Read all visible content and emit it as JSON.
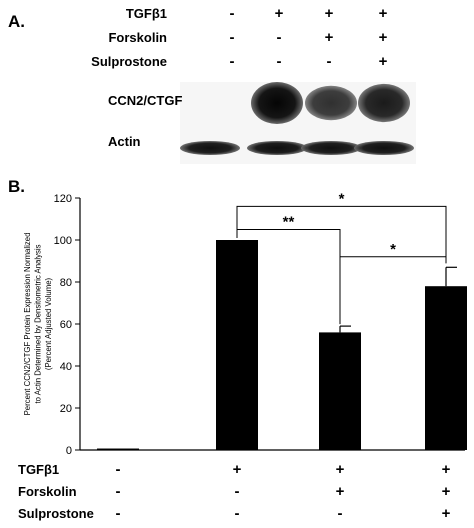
{
  "panel_a": {
    "label": "A.",
    "conditions": [
      {
        "name": "TGFβ1",
        "signs": [
          "-",
          "+",
          "+",
          "+"
        ]
      },
      {
        "name": "Forskolin",
        "signs": [
          "-",
          "-",
          "+",
          "+"
        ]
      },
      {
        "name": "Sulprostone",
        "signs": [
          "-",
          "-",
          "-",
          "+"
        ]
      }
    ],
    "blots": [
      {
        "label": "CCN2/CTGF",
        "intensity": [
          0.0,
          1.0,
          0.6,
          0.8
        ]
      },
      {
        "label": "Actin",
        "intensity": [
          0.9,
          0.92,
          0.9,
          0.9
        ]
      }
    ]
  },
  "panel_b": {
    "label": "B.",
    "conditions": [
      {
        "name": "TGFβ1",
        "signs": [
          "-",
          "+",
          "+",
          "+"
        ]
      },
      {
        "name": "Forskolin",
        "signs": [
          "-",
          "-",
          "+",
          "+"
        ]
      },
      {
        "name": "Sulprostone",
        "signs": [
          "-",
          "-",
          "-",
          "+"
        ]
      }
    ]
  },
  "chart_data": {
    "type": "bar",
    "title": "",
    "xlabel": "",
    "ylabel": "Percent CCN2/CTGF Protein Expression Normalized to Actin Determined by Densitometric Analysis (Percent Adjusted Volume)",
    "ylabel_lines": [
      "Percent CCN2/CTGF Protein Expression Normalized",
      "to Actin Determined by Densitometric Analysis",
      "(Percent Adjusted Volume)"
    ],
    "ylim": [
      0,
      120
    ],
    "yticks": [
      0,
      20,
      40,
      60,
      80,
      100,
      120
    ],
    "values": [
      0.7,
      100,
      56,
      78
    ],
    "errors": [
      0,
      0,
      3,
      9
    ],
    "grid": false,
    "bar_color": "#000000",
    "significance": [
      {
        "from": 1,
        "to": 2,
        "label": "**"
      },
      {
        "from": 2,
        "to": 3,
        "label": "*"
      },
      {
        "from": 1,
        "to": 3,
        "label": "*"
      }
    ]
  }
}
